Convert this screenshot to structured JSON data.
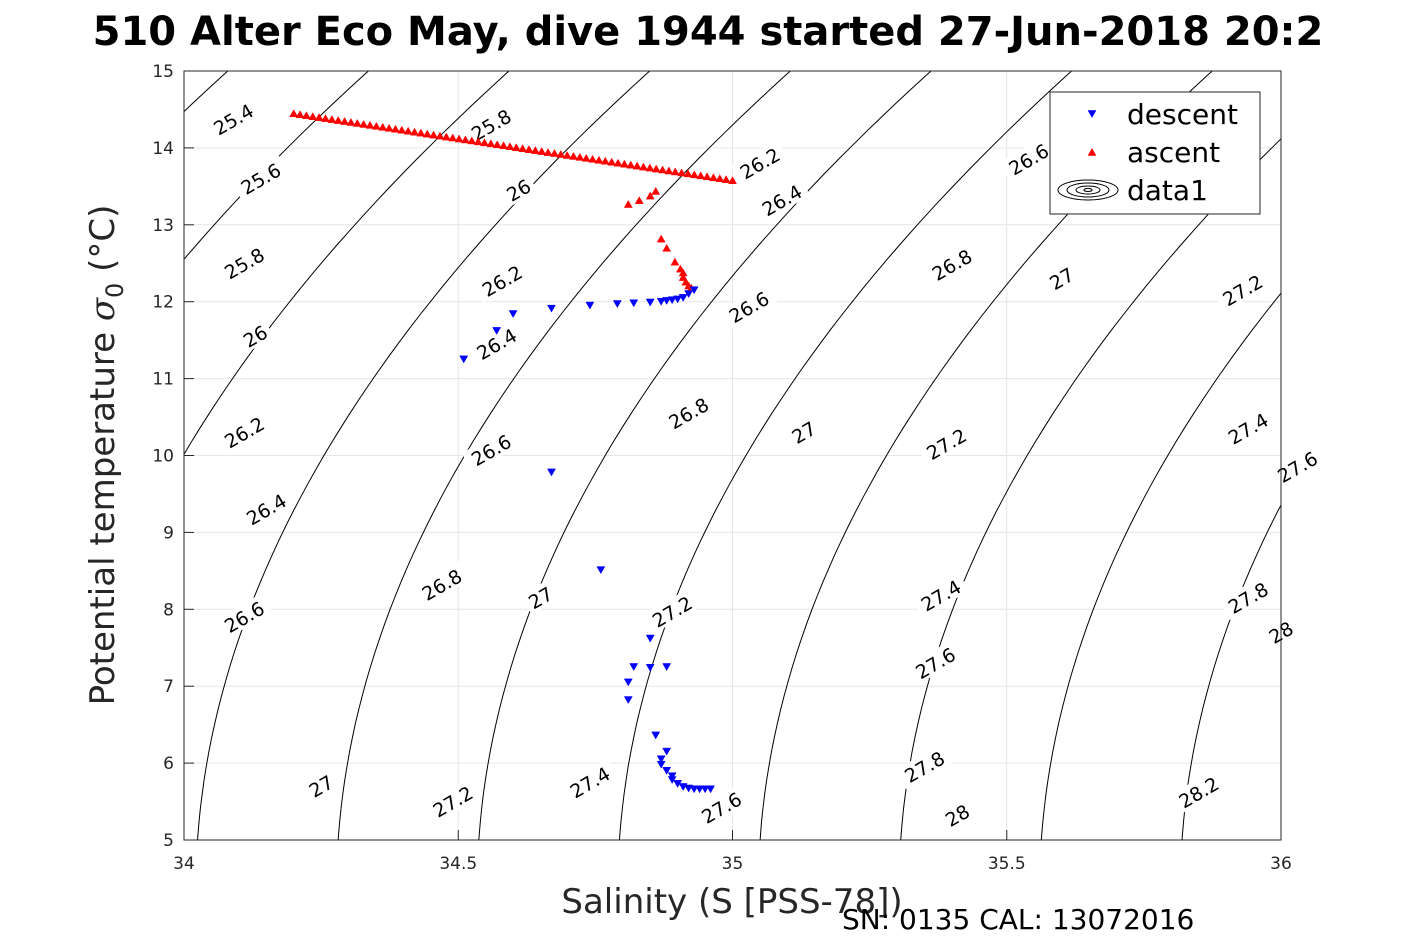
{
  "chart_data": {
    "type": "scatter",
    "title": "510 Alter Eco May, dive 1944 started 27-Jun-2018 20:2",
    "xlabel": "Salinity (S [PSS-78])",
    "ylabel_main": "Potential temperature ",
    "ylabel_sigma": "σ",
    "ylabel_sub": "0",
    "ylabel_unit": " (°C)",
    "xlim": [
      34,
      36
    ],
    "ylim": [
      5,
      15
    ],
    "grid": true,
    "legend_position": "top-right",
    "x_ticks": [
      {
        "value": 34,
        "label": "34"
      },
      {
        "value": 34.5,
        "label": "34.5"
      },
      {
        "value": 35,
        "label": "35"
      },
      {
        "value": 35.5,
        "label": "35.5"
      },
      {
        "value": 36,
        "label": "36"
      }
    ],
    "y_ticks": [
      {
        "value": 5,
        "label": "5"
      },
      {
        "value": 6,
        "label": "6"
      },
      {
        "value": 7,
        "label": "7"
      },
      {
        "value": 8,
        "label": "8"
      },
      {
        "value": 9,
        "label": "9"
      },
      {
        "value": 10,
        "label": "10"
      },
      {
        "value": 11,
        "label": "11"
      },
      {
        "value": 12,
        "label": "12"
      },
      {
        "value": 13,
        "label": "13"
      },
      {
        "value": 14,
        "label": "14"
      },
      {
        "value": 15,
        "label": "15"
      }
    ],
    "series": [
      {
        "name": "descent",
        "marker": "triangle-down",
        "color": "#0000ff",
        "points": [
          [
            34.51,
            11.25
          ],
          [
            34.57,
            11.62
          ],
          [
            34.6,
            11.84
          ],
          [
            34.67,
            11.91
          ],
          [
            34.74,
            11.95
          ],
          [
            34.79,
            11.97
          ],
          [
            34.82,
            11.98
          ],
          [
            34.85,
            11.99
          ],
          [
            34.87,
            12.0
          ],
          [
            34.88,
            12.01
          ],
          [
            34.89,
            12.02
          ],
          [
            34.9,
            12.03
          ],
          [
            34.91,
            12.05
          ],
          [
            34.92,
            12.1
          ],
          [
            34.93,
            12.15
          ],
          [
            34.67,
            9.78
          ],
          [
            34.76,
            8.51
          ],
          [
            34.85,
            7.62
          ],
          [
            34.82,
            7.25
          ],
          [
            34.85,
            7.24
          ],
          [
            34.88,
            7.25
          ],
          [
            34.81,
            7.05
          ],
          [
            34.81,
            6.82
          ],
          [
            34.86,
            6.36
          ],
          [
            34.88,
            6.15
          ],
          [
            34.87,
            6.05
          ],
          [
            34.87,
            5.98
          ],
          [
            34.88,
            5.9
          ],
          [
            34.89,
            5.83
          ],
          [
            34.89,
            5.78
          ],
          [
            34.9,
            5.73
          ],
          [
            34.91,
            5.69
          ],
          [
            34.92,
            5.67
          ],
          [
            34.93,
            5.66
          ],
          [
            34.94,
            5.66
          ],
          [
            34.95,
            5.66
          ],
          [
            34.96,
            5.66
          ]
        ]
      },
      {
        "name": "ascent",
        "marker": "triangle-up",
        "color": "#ff0000",
        "points": [
          [
            34.81,
            13.27
          ],
          [
            34.83,
            13.32
          ],
          [
            34.85,
            13.38
          ],
          [
            34.86,
            13.44
          ],
          [
            34.87,
            12.82
          ],
          [
            34.88,
            12.7
          ],
          [
            34.895,
            12.52
          ],
          [
            34.905,
            12.43
          ],
          [
            34.91,
            12.38
          ],
          [
            34.91,
            12.32
          ],
          [
            34.915,
            12.26
          ],
          [
            34.92,
            12.21
          ],
          [
            34.925,
            12.18
          ]
        ],
        "line_points_start": [
          34.2,
          14.45
        ],
        "line_points_end": [
          35.0,
          13.58
        ],
        "line_point_count": 70
      }
    ],
    "legend": [
      {
        "label": "descent",
        "marker": "triangle-down",
        "color": "#0000ff"
      },
      {
        "label": "ascent",
        "marker": "triangle-up",
        "color": "#ff0000"
      },
      {
        "label": "data1",
        "marker": "contour",
        "color": "#000000"
      }
    ],
    "contours": {
      "levels": [
        25.4,
        25.6,
        25.8,
        26.0,
        26.2,
        26.4,
        26.6,
        26.8,
        27.0,
        27.2,
        27.4,
        27.6,
        27.8,
        28.0,
        28.2
      ],
      "labels": [
        {
          "text": "25.4",
          "s": 34.09,
          "t": 14.37
        },
        {
          "text": "25.6",
          "s": 34.14,
          "t": 13.6
        },
        {
          "text": "25.8",
          "s": 34.11,
          "t": 12.5
        },
        {
          "text": "26",
          "s": 34.13,
          "t": 11.55
        },
        {
          "text": "26.2",
          "s": 34.11,
          "t": 10.3
        },
        {
          "text": "26.4",
          "s": 34.15,
          "t": 9.3
        },
        {
          "text": "26.6",
          "s": 34.11,
          "t": 7.9
        },
        {
          "text": "27",
          "s": 34.25,
          "t": 5.7
        },
        {
          "text": "25.8",
          "s": 34.56,
          "t": 14.3
        },
        {
          "text": "26",
          "s": 34.61,
          "t": 13.45
        },
        {
          "text": "26.2",
          "s": 34.58,
          "t": 12.27
        },
        {
          "text": "26.4",
          "s": 34.57,
          "t": 11.45
        },
        {
          "text": "26.6",
          "s": 34.56,
          "t": 10.07
        },
        {
          "text": "26.8",
          "s": 34.47,
          "t": 8.32
        },
        {
          "text": "27",
          "s": 34.65,
          "t": 8.15
        },
        {
          "text": "27.2",
          "s": 34.49,
          "t": 5.5
        },
        {
          "text": "26.2",
          "s": 35.05,
          "t": 13.8
        },
        {
          "text": "26.4",
          "s": 35.09,
          "t": 13.32
        },
        {
          "text": "26.6",
          "s": 35.03,
          "t": 11.93
        },
        {
          "text": "26.8",
          "s": 34.92,
          "t": 10.55
        },
        {
          "text": "27",
          "s": 35.13,
          "t": 10.3
        },
        {
          "text": "27.2",
          "s": 34.89,
          "t": 7.97
        },
        {
          "text": "27.4",
          "s": 34.74,
          "t": 5.75
        },
        {
          "text": "27.6",
          "s": 34.98,
          "t": 5.42
        },
        {
          "text": "26.6",
          "s": 35.54,
          "t": 13.85
        },
        {
          "text": "26.8",
          "s": 35.4,
          "t": 12.48
        },
        {
          "text": "27",
          "s": 35.6,
          "t": 12.3
        },
        {
          "text": "27.2",
          "s": 35.39,
          "t": 10.15
        },
        {
          "text": "27.4",
          "s": 35.38,
          "t": 8.18
        },
        {
          "text": "27.6",
          "s": 35.37,
          "t": 7.3
        },
        {
          "text": "27.8",
          "s": 35.35,
          "t": 5.95
        },
        {
          "text": "28",
          "s": 35.41,
          "t": 5.32
        },
        {
          "text": "27.2",
          "s": 35.93,
          "t": 12.15
        },
        {
          "text": "27.4",
          "s": 35.94,
          "t": 10.35
        },
        {
          "text": "27.6",
          "s": 36.03,
          "t": 9.85
        },
        {
          "text": "27.8",
          "s": 35.94,
          "t": 8.15
        },
        {
          "text": "28",
          "s": 36.0,
          "t": 7.7
        },
        {
          "text": "28.2",
          "s": 35.85,
          "t": 5.62
        }
      ]
    }
  },
  "footer": {
    "text": "SN: 0135  CAL: 13072016"
  }
}
